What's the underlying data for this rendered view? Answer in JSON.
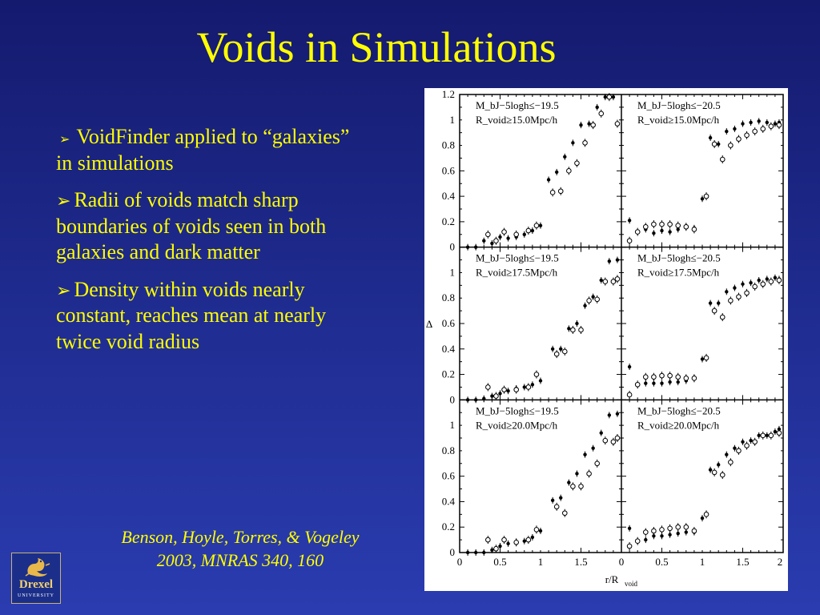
{
  "slide": {
    "title": "Voids in Simulations",
    "bullets": [
      {
        "text": "VoidFinder applied to “galaxies” in simulations",
        "marker": "arrow-bullet-icon"
      },
      {
        "text": "Radii of voids match sharp boundaries of voids seen in both galaxies and dark matter",
        "marker": "arrow-bullet-icon"
      },
      {
        "text": "Density within voids nearly constant, reaches mean at nearly twice void radius",
        "marker": "arrow-bullet-icon"
      }
    ],
    "arrow_glyph": "➢",
    "citation_line1": "Benson, Hoyle, Torres, & Vogeley",
    "citation_line2": "2003, MNRAS 340, 160",
    "logo": {
      "name": "Drexel",
      "subtitle": "UNIVERSITY",
      "icon": "dragon-icon"
    },
    "colors": {
      "text": "#ffff00",
      "background_top": "#141a6e",
      "background_bottom": "#2a3cb0"
    }
  },
  "chart_data": {
    "type": "scatter",
    "layout": "3x2 grid",
    "xlabel": "r/R",
    "xlabel_sub": "void",
    "ylabel": "Δ",
    "xlim": [
      0,
      2
    ],
    "ylim": [
      0,
      1.2
    ],
    "x_ticks_left": [
      "0",
      "0.5",
      "1",
      "1.5",
      "0"
    ],
    "x_ticks_right": [
      "0.5",
      "1",
      "1.5",
      "2"
    ],
    "y_ticks_top": [
      "0",
      "0.2",
      "0.4",
      "0.6",
      "0.8",
      "1",
      "1.2"
    ],
    "y_ticks": [
      "0",
      "0.2",
      "0.4",
      "0.6",
      "0.8",
      "1"
    ],
    "panels": [
      {
        "label_line1": "M_bJ−5logh≤−19.5",
        "label_line2": "R_void≥15.0Mpc/h",
        "filled": [
          [
            0.1,
            0.0
          ],
          [
            0.2,
            0.0
          ],
          [
            0.3,
            0.05
          ],
          [
            0.4,
            0.03
          ],
          [
            0.5,
            0.08
          ],
          [
            0.6,
            0.07
          ],
          [
            0.7,
            0.08
          ],
          [
            0.8,
            0.1
          ],
          [
            0.9,
            0.13
          ],
          [
            1.0,
            0.17
          ],
          [
            1.1,
            0.53
          ],
          [
            1.2,
            0.59
          ],
          [
            1.3,
            0.71
          ],
          [
            1.4,
            0.82
          ],
          [
            1.5,
            0.96
          ],
          [
            1.6,
            0.97
          ],
          [
            1.7,
            1.1
          ],
          [
            1.8,
            1.18
          ],
          [
            1.9,
            1.18
          ]
        ],
        "open": [
          [
            0.35,
            0.1
          ],
          [
            0.45,
            0.05
          ],
          [
            0.55,
            0.12
          ],
          [
            0.7,
            0.1
          ],
          [
            0.85,
            0.13
          ],
          [
            0.95,
            0.17
          ],
          [
            1.15,
            0.43
          ],
          [
            1.25,
            0.44
          ],
          [
            1.35,
            0.6
          ],
          [
            1.45,
            0.66
          ],
          [
            1.55,
            0.82
          ],
          [
            1.65,
            0.96
          ],
          [
            1.75,
            1.05
          ],
          [
            1.85,
            1.18
          ],
          [
            1.95,
            0.97
          ]
        ]
      },
      {
        "label_line1": "M_bJ−5logh≤−20.5",
        "label_line2": "R_void≥15.0Mpc/h",
        "filled": [
          [
            0.1,
            0.21
          ],
          [
            0.3,
            0.14
          ],
          [
            0.4,
            0.11
          ],
          [
            0.5,
            0.13
          ],
          [
            0.6,
            0.12
          ],
          [
            0.7,
            0.14
          ],
          [
            0.8,
            0.16
          ],
          [
            0.9,
            0.15
          ],
          [
            1.0,
            0.38
          ],
          [
            1.1,
            0.86
          ],
          [
            1.2,
            0.81
          ],
          [
            1.3,
            0.91
          ],
          [
            1.4,
            0.93
          ],
          [
            1.5,
            0.97
          ],
          [
            1.6,
            0.98
          ],
          [
            1.7,
            0.99
          ],
          [
            1.8,
            0.98
          ],
          [
            1.9,
            0.97
          ],
          [
            1.95,
            0.98
          ]
        ],
        "open": [
          [
            0.1,
            0.05
          ],
          [
            0.2,
            0.12
          ],
          [
            0.3,
            0.16
          ],
          [
            0.4,
            0.18
          ],
          [
            0.5,
            0.18
          ],
          [
            0.6,
            0.18
          ],
          [
            0.7,
            0.17
          ],
          [
            0.8,
            0.16
          ],
          [
            0.9,
            0.14
          ],
          [
            1.05,
            0.4
          ],
          [
            1.15,
            0.81
          ],
          [
            1.25,
            0.69
          ],
          [
            1.35,
            0.8
          ],
          [
            1.45,
            0.85
          ],
          [
            1.55,
            0.88
          ],
          [
            1.65,
            0.91
          ],
          [
            1.75,
            0.93
          ],
          [
            1.85,
            0.95
          ],
          [
            1.95,
            0.96
          ]
        ]
      },
      {
        "label_line1": "M_bJ−5logh≤−19.5",
        "label_line2": "R_void≥17.5Mpc/h",
        "filled": [
          [
            0.1,
            0.0
          ],
          [
            0.2,
            0.0
          ],
          [
            0.3,
            0.01
          ],
          [
            0.4,
            0.03
          ],
          [
            0.5,
            0.05
          ],
          [
            0.6,
            0.07
          ],
          [
            0.7,
            0.09
          ],
          [
            0.8,
            0.1
          ],
          [
            0.9,
            0.12
          ],
          [
            1.0,
            0.15
          ],
          [
            1.15,
            0.4
          ],
          [
            1.25,
            0.4
          ],
          [
            1.35,
            0.56
          ],
          [
            1.45,
            0.6
          ],
          [
            1.55,
            0.74
          ],
          [
            1.65,
            0.81
          ],
          [
            1.75,
            0.94
          ],
          [
            1.85,
            1.09
          ],
          [
            1.95,
            1.1
          ]
        ],
        "open": [
          [
            0.35,
            0.1
          ],
          [
            0.45,
            0.03
          ],
          [
            0.55,
            0.08
          ],
          [
            0.7,
            0.08
          ],
          [
            0.85,
            0.1
          ],
          [
            0.95,
            0.2
          ],
          [
            1.2,
            0.36
          ],
          [
            1.3,
            0.38
          ],
          [
            1.4,
            0.55
          ],
          [
            1.5,
            0.55
          ],
          [
            1.6,
            0.78
          ],
          [
            1.7,
            0.79
          ],
          [
            1.8,
            0.93
          ],
          [
            1.9,
            0.93
          ],
          [
            1.95,
            0.95
          ]
        ]
      },
      {
        "label_line1": "M_bJ−5logh≤−20.5",
        "label_line2": "R_void≥17.5Mpc/h",
        "filled": [
          [
            0.1,
            0.26
          ],
          [
            0.3,
            0.13
          ],
          [
            0.4,
            0.13
          ],
          [
            0.5,
            0.13
          ],
          [
            0.6,
            0.14
          ],
          [
            0.7,
            0.14
          ],
          [
            0.8,
            0.15
          ],
          [
            0.9,
            0.17
          ],
          [
            1.0,
            0.32
          ],
          [
            1.1,
            0.76
          ],
          [
            1.2,
            0.76
          ],
          [
            1.3,
            0.85
          ],
          [
            1.4,
            0.88
          ],
          [
            1.5,
            0.91
          ],
          [
            1.6,
            0.92
          ],
          [
            1.7,
            0.94
          ],
          [
            1.8,
            0.95
          ],
          [
            1.9,
            0.96
          ],
          [
            1.95,
            0.95
          ]
        ],
        "open": [
          [
            0.1,
            0.04
          ],
          [
            0.2,
            0.12
          ],
          [
            0.3,
            0.18
          ],
          [
            0.4,
            0.18
          ],
          [
            0.5,
            0.19
          ],
          [
            0.6,
            0.19
          ],
          [
            0.7,
            0.18
          ],
          [
            0.8,
            0.17
          ],
          [
            0.9,
            0.17
          ],
          [
            1.05,
            0.33
          ],
          [
            1.15,
            0.7
          ],
          [
            1.25,
            0.65
          ],
          [
            1.35,
            0.78
          ],
          [
            1.45,
            0.81
          ],
          [
            1.55,
            0.84
          ],
          [
            1.65,
            0.89
          ],
          [
            1.75,
            0.91
          ],
          [
            1.85,
            0.93
          ],
          [
            1.95,
            0.94
          ]
        ]
      },
      {
        "label_line1": "M_bJ−5logh≤−19.5",
        "label_line2": "R_void≥20.0Mpc/h",
        "filled": [
          [
            0.1,
            0.0
          ],
          [
            0.2,
            0.0
          ],
          [
            0.3,
            0.0
          ],
          [
            0.4,
            0.02
          ],
          [
            0.5,
            0.05
          ],
          [
            0.6,
            0.07
          ],
          [
            0.7,
            0.08
          ],
          [
            0.8,
            0.09
          ],
          [
            0.9,
            0.12
          ],
          [
            1.0,
            0.17
          ],
          [
            1.15,
            0.41
          ],
          [
            1.25,
            0.43
          ],
          [
            1.35,
            0.55
          ],
          [
            1.45,
            0.62
          ],
          [
            1.55,
            0.77
          ],
          [
            1.65,
            0.82
          ],
          [
            1.75,
            0.94
          ],
          [
            1.85,
            1.08
          ],
          [
            1.95,
            1.09
          ]
        ],
        "open": [
          [
            0.35,
            0.1
          ],
          [
            0.45,
            0.03
          ],
          [
            0.55,
            0.1
          ],
          [
            0.7,
            0.08
          ],
          [
            0.85,
            0.1
          ],
          [
            0.95,
            0.18
          ],
          [
            1.2,
            0.36
          ],
          [
            1.3,
            0.31
          ],
          [
            1.4,
            0.52
          ],
          [
            1.5,
            0.52
          ],
          [
            1.6,
            0.62
          ],
          [
            1.7,
            0.7
          ],
          [
            1.8,
            0.88
          ],
          [
            1.9,
            0.87
          ],
          [
            1.95,
            0.9
          ]
        ]
      },
      {
        "label_line1": "M_bJ−5logh≤−20.5",
        "label_line2": "R_void≥20.0Mpc/h",
        "filled": [
          [
            0.1,
            0.19
          ],
          [
            0.3,
            0.1
          ],
          [
            0.4,
            0.13
          ],
          [
            0.5,
            0.13
          ],
          [
            0.6,
            0.14
          ],
          [
            0.7,
            0.15
          ],
          [
            0.8,
            0.16
          ],
          [
            0.9,
            0.16
          ],
          [
            1.0,
            0.27
          ],
          [
            1.1,
            0.65
          ],
          [
            1.2,
            0.69
          ],
          [
            1.3,
            0.77
          ],
          [
            1.4,
            0.82
          ],
          [
            1.5,
            0.87
          ],
          [
            1.6,
            0.88
          ],
          [
            1.7,
            0.92
          ],
          [
            1.8,
            0.92
          ],
          [
            1.9,
            0.95
          ],
          [
            1.95,
            0.97
          ]
        ],
        "open": [
          [
            0.1,
            0.05
          ],
          [
            0.2,
            0.09
          ],
          [
            0.3,
            0.16
          ],
          [
            0.4,
            0.17
          ],
          [
            0.5,
            0.18
          ],
          [
            0.6,
            0.19
          ],
          [
            0.7,
            0.2
          ],
          [
            0.8,
            0.2
          ],
          [
            0.9,
            0.17
          ],
          [
            1.05,
            0.3
          ],
          [
            1.15,
            0.63
          ],
          [
            1.25,
            0.61
          ],
          [
            1.35,
            0.71
          ],
          [
            1.45,
            0.8
          ],
          [
            1.55,
            0.84
          ],
          [
            1.65,
            0.87
          ],
          [
            1.75,
            0.92
          ],
          [
            1.85,
            0.92
          ],
          [
            1.95,
            0.94
          ]
        ]
      }
    ]
  }
}
